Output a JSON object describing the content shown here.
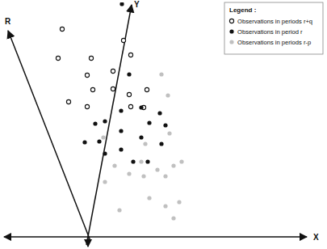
{
  "chart_data": {
    "type": "scatter",
    "x_label": "X",
    "y_label": "Y",
    "r_label": "R",
    "legend_title": "Legend :",
    "legend": "top-right",
    "tick_labels": false,
    "xlim": [
      -105,
      270
    ],
    "ylim": [
      0,
      290
    ],
    "series": [
      {
        "name": "Observations in periods r+q",
        "color": "#111111",
        "marker": "open-circle",
        "x": [
          -33,
          -38,
          3,
          -2,
          30,
          52,
          43,
          5,
          30,
          -25,
          -2,
          50,
          72,
          68,
          52
        ],
        "values": [
          257,
          221,
          221,
          200,
          205,
          225,
          243,
          182,
          183,
          167,
          161,
          176,
          182,
          160,
          161
        ]
      },
      {
        "name": "Observations in period r",
        "color": "#111111",
        "marker": "circle",
        "x": [
          41,
          50,
          20,
          40,
          65,
          88,
          8,
          40,
          75,
          95,
          13,
          40,
          65,
          90,
          -5,
          55,
          73,
          20
        ],
        "values": [
          288,
          201,
          143,
          156,
          160,
          153,
          140,
          131,
          141,
          138,
          118,
          108,
          123,
          115,
          117,
          93,
          93,
          103
        ]
      },
      {
        "name": "Observations in periods r-p",
        "color": "#c0c0c0",
        "marker": "circle",
        "x": [
          90,
          98,
          100,
          70,
          18,
          32,
          50,
          68,
          95,
          105,
          115,
          20,
          38,
          75,
          95,
          105,
          112,
          65,
          85
        ],
        "values": [
          201,
          175,
          128,
          115,
          123,
          88,
          78,
          75,
          75,
          88,
          93,
          68,
          33,
          48,
          38,
          23,
          43,
          93,
          83
        ]
      }
    ]
  }
}
